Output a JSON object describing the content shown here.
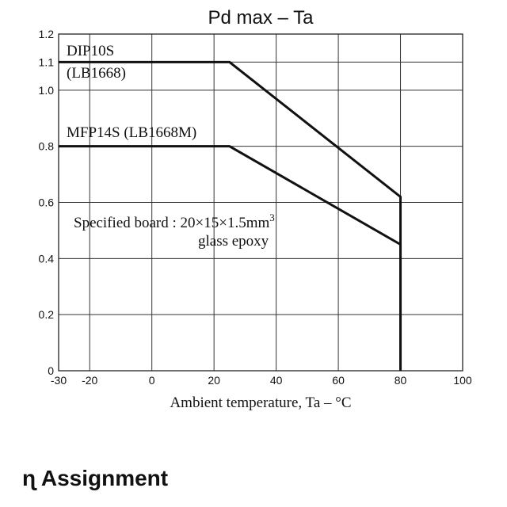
{
  "chart_data": {
    "type": "line",
    "title": "Pd max – Ta",
    "xlabel": "Ambient temperature,  Ta – °C",
    "ylabel": "",
    "xlim": [
      -30,
      100
    ],
    "ylim": [
      0,
      1.2
    ],
    "x_ticks": [
      "-30",
      "-20",
      "0",
      "20",
      "40",
      "60",
      "80",
      "100"
    ],
    "y_ticks": [
      "0",
      "0.2",
      "0.4",
      "0.6",
      "0.8",
      "1.0",
      "1.1",
      "1.2"
    ],
    "grid": true,
    "series": [
      {
        "label_lines": [
          "DIP10S",
          "(LB1668)"
        ],
        "x": [
          -30,
          25,
          80,
          80
        ],
        "y": [
          1.1,
          1.1,
          0.62,
          0
        ]
      },
      {
        "label_lines": [
          "MFP14S (LB1668M)"
        ],
        "x": [
          -30,
          25,
          80,
          80
        ],
        "y": [
          0.8,
          0.8,
          0.45,
          0
        ]
      }
    ],
    "annotation": {
      "line1_prefix": "Specified board : 20×15×1.5mm",
      "line1_sup": "3",
      "line2": "glass epoxy"
    }
  },
  "section": {
    "heading": "ɳ Assignment"
  }
}
